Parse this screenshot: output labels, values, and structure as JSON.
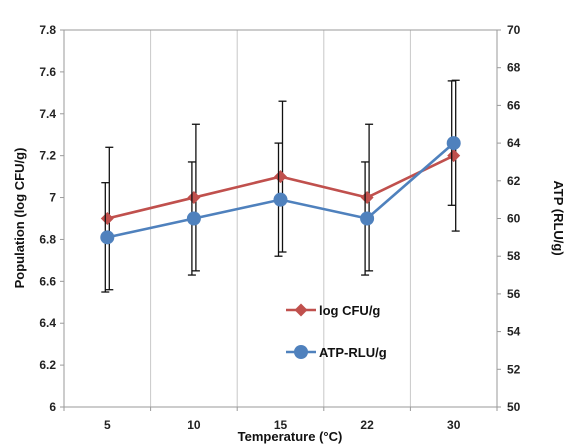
{
  "chart_data": {
    "type": "line",
    "title": "",
    "categories": [
      "5",
      "10",
      "15",
      "22",
      "30"
    ],
    "xlabel": "Temperature (°C)",
    "ylabel_left": "Population (log CFU/g)",
    "ylabel_right": "ATP (RLU/g)",
    "ylim_left": [
      6,
      7.8
    ],
    "yticks_left": [
      "6",
      "6.2",
      "6.4",
      "6.6",
      "6.8",
      "7",
      "7.2",
      "7.4",
      "7.6",
      "7.8"
    ],
    "ylim_right": [
      50,
      70
    ],
    "yticks_right": [
      "50",
      "52",
      "54",
      "56",
      "58",
      "60",
      "62",
      "64",
      "66",
      "68",
      "70"
    ],
    "grid": "vertical",
    "legend_position": "center-right",
    "series": [
      {
        "name": "log CFU/g",
        "axis": "left",
        "color": "#c0504d",
        "marker": "diamond",
        "values": [
          6.9,
          7.0,
          7.1,
          7.0,
          7.2
        ],
        "error": [
          0.34,
          0.35,
          0.36,
          0.35,
          0.36
        ]
      },
      {
        "name": "ATP-RLU/g",
        "axis": "right",
        "color": "#4f81bd",
        "marker": "circle",
        "values": [
          59.0,
          60.0,
          61.0,
          60.0,
          64.0
        ],
        "error": [
          2.9,
          3.0,
          3.0,
          3.0,
          3.3
        ]
      }
    ]
  }
}
